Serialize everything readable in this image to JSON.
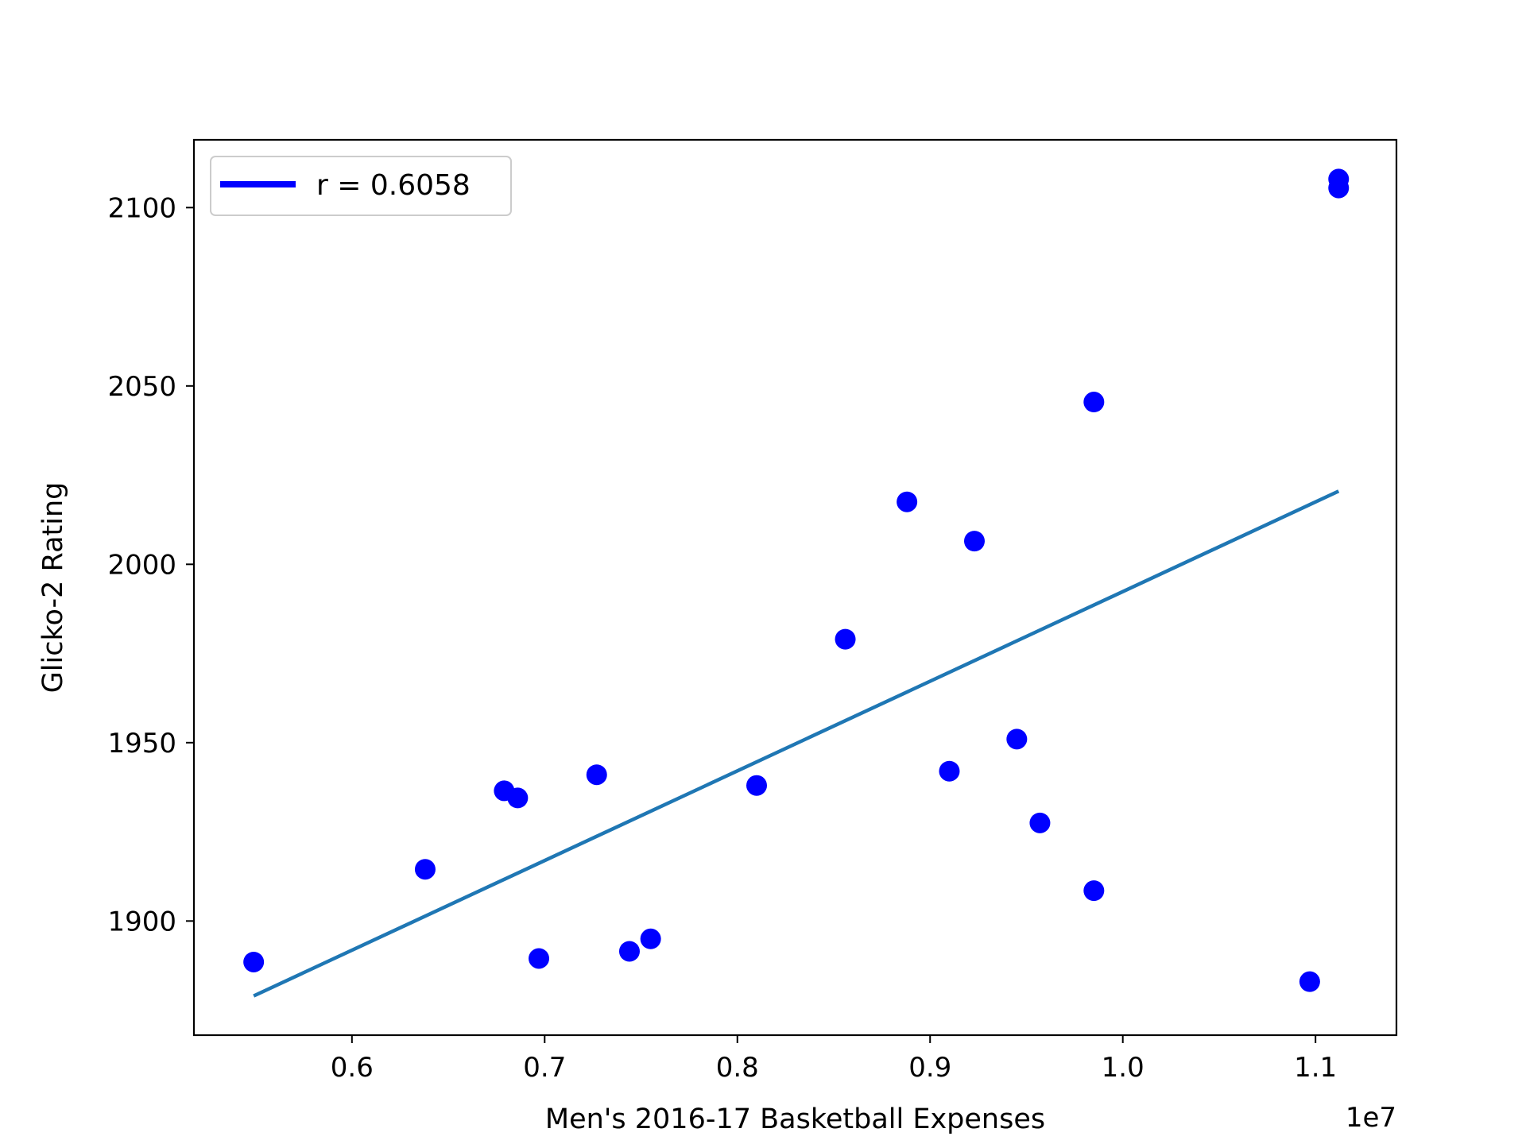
{
  "chart_data": {
    "type": "scatter",
    "title": "",
    "xlabel": "Men's 2016-17 Basketball Expenses",
    "ylabel": "Glicko-2 Rating",
    "x_offset_label": "1e7",
    "xlim": [
      0.518,
      1.142
    ],
    "ylim": [
      1868,
      2119
    ],
    "x_scale": "linear",
    "y_scale": "linear",
    "grid": false,
    "x_ticks": [
      0.6,
      0.7,
      0.8,
      0.9,
      1.0,
      1.1
    ],
    "x_tick_labels": [
      "0.6",
      "0.7",
      "0.8",
      "0.9",
      "1.0",
      "1.1"
    ],
    "y_ticks": [
      1900,
      1950,
      2000,
      2050,
      2100
    ],
    "y_tick_labels": [
      "1900",
      "1950",
      "2000",
      "2050",
      "2100"
    ],
    "legend": {
      "position": "upper-left",
      "entries": [
        {
          "label": "r = 0.6058",
          "color": "#0000ff"
        }
      ]
    },
    "series": [
      {
        "kind": "scatter",
        "color": "#0000ff",
        "points": [
          {
            "x": 0.549,
            "y": 1888.5
          },
          {
            "x": 0.638,
            "y": 1914.5
          },
          {
            "x": 0.679,
            "y": 1936.5
          },
          {
            "x": 0.686,
            "y": 1934.5
          },
          {
            "x": 0.697,
            "y": 1889.5
          },
          {
            "x": 0.727,
            "y": 1941.0
          },
          {
            "x": 0.744,
            "y": 1891.5
          },
          {
            "x": 0.755,
            "y": 1895.0
          },
          {
            "x": 0.81,
            "y": 1938.0
          },
          {
            "x": 0.856,
            "y": 1979.0
          },
          {
            "x": 0.888,
            "y": 2017.5
          },
          {
            "x": 0.91,
            "y": 1942.0
          },
          {
            "x": 0.923,
            "y": 2006.5
          },
          {
            "x": 0.945,
            "y": 1951.0
          },
          {
            "x": 0.957,
            "y": 1927.5
          },
          {
            "x": 0.985,
            "y": 2045.5
          },
          {
            "x": 0.985,
            "y": 1908.5
          },
          {
            "x": 1.097,
            "y": 1883.0
          },
          {
            "x": 1.112,
            "y": 2108.0
          },
          {
            "x": 1.112,
            "y": 2105.5
          }
        ]
      },
      {
        "kind": "line",
        "color": "#1f77b4",
        "points": [
          {
            "x": 0.549,
            "y": 1879.0
          },
          {
            "x": 1.112,
            "y": 2020.5
          }
        ]
      }
    ]
  }
}
